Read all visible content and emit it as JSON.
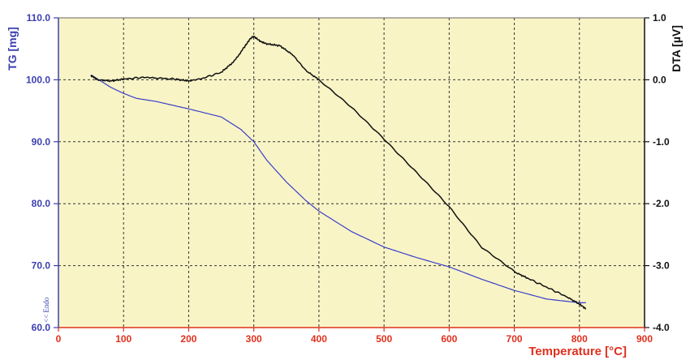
{
  "chart_data": {
    "type": "line",
    "xlabel": "Temperature [°C]",
    "ylabel_left": "TG [mg]",
    "ylabel_right": "DTA [µV]",
    "annotation": "<< Endo",
    "xlim": [
      0,
      900
    ],
    "ylim_left": [
      60,
      110
    ],
    "ylim_right": [
      -4,
      1
    ],
    "x_ticks": [
      "0",
      "100",
      "200",
      "300",
      "400",
      "500",
      "600",
      "700",
      "800",
      "900"
    ],
    "y_left_ticks": [
      "60.0",
      "70.0",
      "80.0",
      "90.0",
      "100.0",
      "110.0"
    ],
    "y_right_ticks": [
      "-4.0",
      "-3.0",
      "-2.0",
      "-1.0",
      "0.0",
      "1.0"
    ],
    "grid": true,
    "colors": {
      "plot_bg": "#f8f4c6",
      "tg": "#3a3fc9",
      "dta": "#111111",
      "x_axis": "#e0301e",
      "left_axis": "#3b3fb0",
      "right_axis": "#111111"
    },
    "series": [
      {
        "name": "TG",
        "axis": "left",
        "x": [
          50,
          65,
          80,
          100,
          120,
          150,
          200,
          250,
          280,
          300,
          320,
          350,
          380,
          400,
          450,
          500,
          550,
          600,
          650,
          700,
          750,
          800,
          810
        ],
        "y": [
          100.8,
          99.8,
          98.8,
          97.8,
          97.0,
          96.5,
          95.3,
          94.0,
          92.0,
          90.0,
          87.0,
          83.5,
          80.5,
          78.8,
          75.5,
          73.0,
          71.3,
          69.8,
          67.8,
          66.0,
          64.6,
          64.0,
          64.0
        ]
      },
      {
        "name": "DTA",
        "axis": "right",
        "x": [
          50,
          60,
          80,
          100,
          130,
          150,
          180,
          200,
          220,
          250,
          270,
          285,
          295,
          300,
          310,
          320,
          340,
          360,
          380,
          400,
          450,
          500,
          550,
          600,
          650,
          700,
          720,
          750,
          780,
          800,
          810
        ],
        "y": [
          0.07,
          0.0,
          -0.02,
          0.01,
          0.04,
          0.03,
          0.01,
          -0.02,
          0.02,
          0.12,
          0.3,
          0.52,
          0.67,
          0.7,
          0.62,
          0.58,
          0.55,
          0.4,
          0.15,
          0.0,
          -0.45,
          -0.95,
          -1.5,
          -2.05,
          -2.7,
          -3.1,
          -3.2,
          -3.35,
          -3.5,
          -3.62,
          -3.7
        ]
      }
    ]
  }
}
